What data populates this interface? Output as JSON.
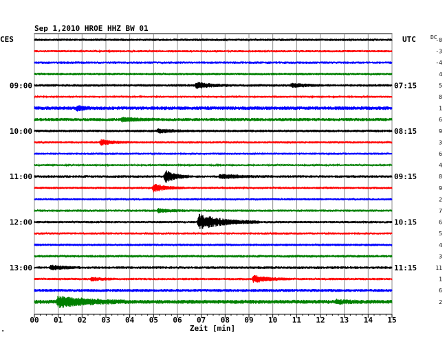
{
  "header": {
    "title": "Sep 1,2010   HROE HHZ BW 01",
    "left_tz": "CES",
    "right_tz": "UTC",
    "dc_label": "DC"
  },
  "footer": {
    "corner_mark": "\"",
    "x_axis_label": "Zeit [min]"
  },
  "chart_data": {
    "type": "line",
    "title": "Sep 1,2010   HROE HHZ BW 01",
    "xlabel": "Zeit [min]",
    "ylabel": "",
    "xlim": [
      0,
      15
    ],
    "x_ticks": [
      "00",
      "01",
      "02",
      "03",
      "04",
      "05",
      "06",
      "07",
      "08",
      "09",
      "10",
      "11",
      "12",
      "13",
      "14",
      "15"
    ],
    "grid": true,
    "trace_colors": [
      "#000000",
      "#ff0000",
      "#0000ff",
      "#008000"
    ],
    "left_time_labels": [
      {
        "trace": 4,
        "text": "09:00"
      },
      {
        "trace": 8,
        "text": "10:00"
      },
      {
        "trace": 12,
        "text": "11:00"
      },
      {
        "trace": 16,
        "text": "12:00"
      },
      {
        "trace": 20,
        "text": "13:00"
      }
    ],
    "right_time_labels": [
      {
        "trace": 4,
        "text": "07:15"
      },
      {
        "trace": 8,
        "text": "08:15"
      },
      {
        "trace": 12,
        "text": "09:15"
      },
      {
        "trace": 16,
        "text": "10:15"
      },
      {
        "trace": 20,
        "text": "11:15"
      }
    ],
    "dc_offsets": [
      "-0",
      "-3",
      "-4",
      "4",
      "5",
      "8",
      "1",
      "6",
      "9",
      "3",
      "6",
      "4",
      "8",
      "9",
      "2",
      "7",
      "6",
      "5",
      "4",
      "3",
      "11",
      "1",
      "6",
      "2"
    ],
    "traces": [
      {
        "color": "#000000",
        "amp": 1.2,
        "events": []
      },
      {
        "color": "#ff0000",
        "amp": 1.1,
        "events": []
      },
      {
        "color": "#0000ff",
        "amp": 1.2,
        "events": []
      },
      {
        "color": "#008000",
        "amp": 1.2,
        "events": []
      },
      {
        "color": "#000000",
        "amp": 1.3,
        "events": [
          {
            "t": 6.8,
            "amp": 4,
            "dur": 0.6
          },
          {
            "t": 10.8,
            "amp": 3,
            "dur": 0.5
          }
        ]
      },
      {
        "color": "#ff0000",
        "amp": 1.0,
        "events": []
      },
      {
        "color": "#0000ff",
        "amp": 1.8,
        "events": [
          {
            "t": 1.8,
            "amp": 3,
            "dur": 0.3
          }
        ]
      },
      {
        "color": "#008000",
        "amp": 1.6,
        "events": [
          {
            "t": 3.7,
            "amp": 2.5,
            "dur": 0.6
          }
        ]
      },
      {
        "color": "#000000",
        "amp": 1.3,
        "events": [
          {
            "t": 5.2,
            "amp": 3,
            "dur": 0.5
          }
        ]
      },
      {
        "color": "#ff0000",
        "amp": 1.1,
        "events": [
          {
            "t": 2.8,
            "amp": 4,
            "dur": 0.5
          }
        ]
      },
      {
        "color": "#0000ff",
        "amp": 1.1,
        "events": []
      },
      {
        "color": "#008000",
        "amp": 1.0,
        "events": []
      },
      {
        "color": "#000000",
        "amp": 1.3,
        "events": [
          {
            "t": 5.5,
            "amp": 9,
            "dur": 0.4
          },
          {
            "t": 7.8,
            "amp": 3,
            "dur": 0.8
          }
        ]
      },
      {
        "color": "#ff0000",
        "amp": 1.1,
        "events": [
          {
            "t": 5.0,
            "amp": 6,
            "dur": 0.5
          }
        ]
      },
      {
        "color": "#0000ff",
        "amp": 1.1,
        "events": []
      },
      {
        "color": "#008000",
        "amp": 1.2,
        "events": [
          {
            "t": 5.2,
            "amp": 3,
            "dur": 0.5
          }
        ]
      },
      {
        "color": "#000000",
        "amp": 1.2,
        "events": [
          {
            "t": 6.9,
            "amp": 11,
            "dur": 1.0
          }
        ]
      },
      {
        "color": "#ff0000",
        "amp": 1.1,
        "events": []
      },
      {
        "color": "#0000ff",
        "amp": 1.2,
        "events": []
      },
      {
        "color": "#008000",
        "amp": 1.3,
        "events": []
      },
      {
        "color": "#000000",
        "amp": 1.3,
        "events": [
          {
            "t": 0.7,
            "amp": 3.5,
            "dur": 0.5
          }
        ]
      },
      {
        "color": "#ff0000",
        "amp": 1.2,
        "events": [
          {
            "t": 9.2,
            "amp": 5,
            "dur": 0.6
          },
          {
            "t": 2.4,
            "amp": 2.5,
            "dur": 0.4
          }
        ]
      },
      {
        "color": "#0000ff",
        "amp": 1.5,
        "events": []
      },
      {
        "color": "#008000",
        "amp": 2.0,
        "events": [
          {
            "t": 1.0,
            "amp": 8,
            "dur": 1.2
          },
          {
            "t": 12.7,
            "amp": 2.5,
            "dur": 0.4
          }
        ]
      }
    ]
  }
}
